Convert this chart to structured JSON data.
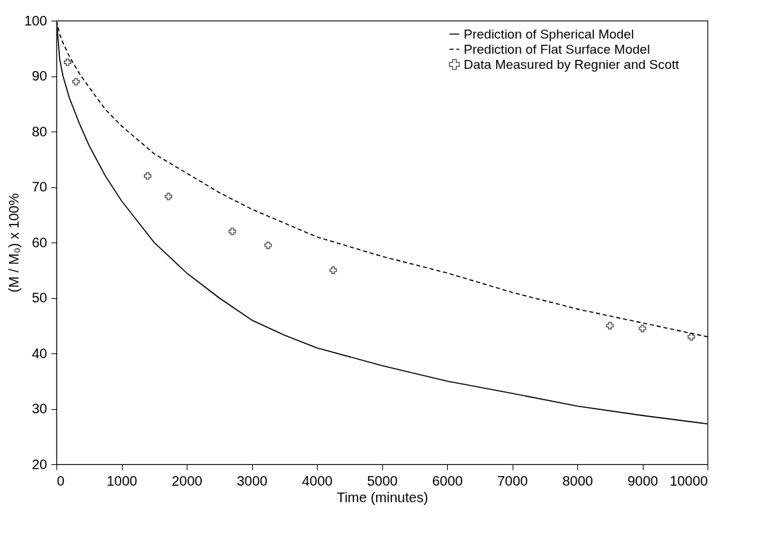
{
  "chart_data": {
    "type": "line",
    "xlabel": "Time (minutes)",
    "ylabel": "(M / M₀) x 100%",
    "xlim": [
      0,
      10000
    ],
    "ylim": [
      20,
      100
    ],
    "xticks": [
      0,
      1000,
      2000,
      3000,
      4000,
      5000,
      6000,
      7000,
      8000,
      9000,
      10000
    ],
    "yticks": [
      20,
      30,
      40,
      50,
      60,
      70,
      80,
      90,
      100
    ],
    "grid": false,
    "legend": "top right",
    "series": [
      {
        "name": "Prediction of Spherical Model",
        "color": "#000000",
        "line_style": "solid",
        "x": [
          0,
          50,
          100,
          200,
          350,
          500,
          750,
          1000,
          1500,
          2000,
          2500,
          3000,
          3500,
          4000,
          5000,
          6000,
          7000,
          8000,
          9000,
          10000
        ],
        "values": [
          100,
          93,
          90,
          86,
          81.5,
          77.5,
          72,
          67.5,
          60,
          54.5,
          50,
          46,
          43.3,
          41,
          37.8,
          35,
          32.8,
          30.5,
          28.8,
          27.3
        ]
      },
      {
        "name": "Prediction of Flat Surface Model",
        "color": "#000000",
        "line_style": "dashed",
        "x": [
          0,
          50,
          100,
          200,
          350,
          500,
          750,
          1000,
          1500,
          2000,
          2500,
          3000,
          3500,
          4000,
          5000,
          6000,
          7000,
          8000,
          9000,
          10000
        ],
        "values": [
          100,
          97.5,
          96,
          93.5,
          90.5,
          88,
          84,
          81,
          76,
          72.5,
          69,
          66,
          63.5,
          61,
          57.5,
          54.5,
          51,
          48,
          45.5,
          43
        ]
      },
      {
        "name": "Data Measured by Regnier and Scott",
        "type": "scatter",
        "color": "#000000",
        "marker": "cross",
        "x": [
          170,
          300,
          1400,
          1720,
          2700,
          3250,
          4250,
          8500,
          9000,
          9750
        ],
        "values": [
          92.5,
          89,
          72,
          68.3,
          62,
          59.5,
          55,
          45,
          44.5,
          43
        ]
      }
    ]
  }
}
